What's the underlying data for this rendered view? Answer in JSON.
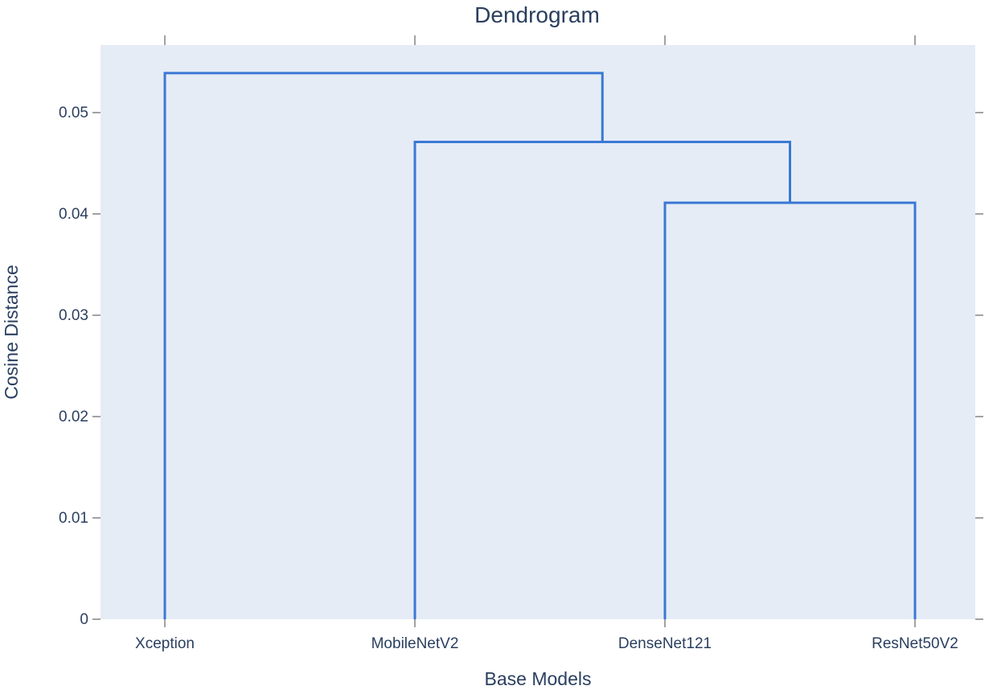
{
  "chart_data": {
    "type": "dendrogram",
    "title": "Dendrogram",
    "xlabel": "Base Models",
    "ylabel": "Cosine Distance",
    "leaves": [
      "Xception",
      "MobileNetV2",
      "DenseNet121",
      "ResNet50V2"
    ],
    "ylim": [
      0,
      0.0565
    ],
    "yticks": [
      0,
      0.01,
      0.02,
      0.03,
      0.04,
      0.05
    ],
    "ytick_labels": [
      "0",
      "0.01",
      "0.02",
      "0.03",
      "0.04",
      "0.05"
    ],
    "links": [
      {
        "left": "DenseNet121",
        "right": "ResNet50V2",
        "height": 0.0411
      },
      {
        "left": "MobileNetV2",
        "right": "DenseNet121+ResNet50V2",
        "height": 0.0471
      },
      {
        "left": "Xception",
        "right": "MobileNetV2+DenseNet121+ResNet50V2",
        "height": 0.0539
      }
    ],
    "line_color": "#3a78d4",
    "plot_background": "#e5ecf6",
    "grid": false
  }
}
